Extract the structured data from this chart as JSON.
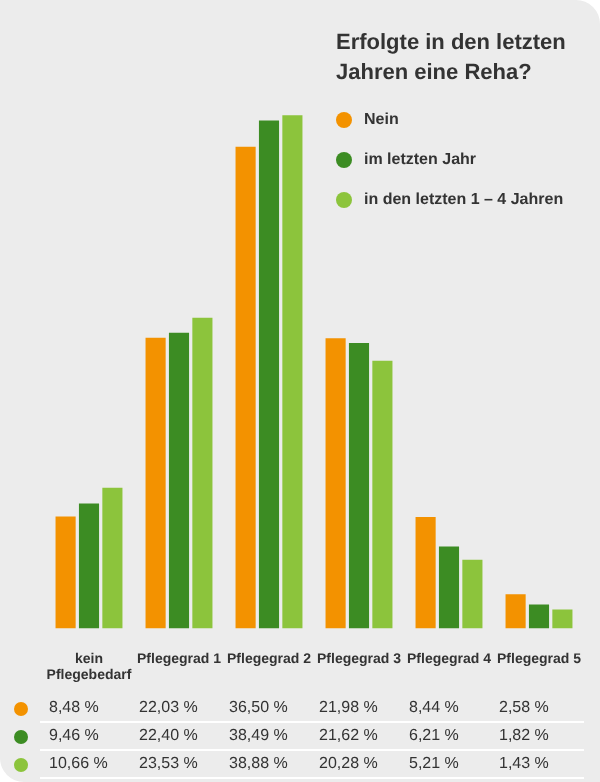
{
  "chart_data": {
    "type": "bar",
    "legend_title": "Erfolgte in den letzten Jahren eine Reha?",
    "legend": "top right",
    "categories": [
      "kein Pflegebedarf",
      "Pflegegrad 1",
      "Pflegegrad 2",
      "Pflegegrad 3",
      "Pflegegrad 4",
      "Pflegegrad 5"
    ],
    "series": [
      {
        "name": "Nein",
        "color": "#f39200",
        "values": [
          8.48,
          22.03,
          36.5,
          21.98,
          8.44,
          2.58
        ],
        "value_labels": [
          "8,48 %",
          "22,03 %",
          "36,50 %",
          "21,98 %",
          "8,44 %",
          "2,58 %"
        ]
      },
      {
        "name": "im letzten Jahr",
        "color": "#3c8c23",
        "values": [
          9.46,
          22.4,
          38.49,
          21.62,
          6.21,
          1.82
        ],
        "value_labels": [
          "9,46 %",
          "22,40 %",
          "38,49 %",
          "21,62 %",
          "6,21 %",
          "1,82 %"
        ]
      },
      {
        "name": "in den letzten 1 – 4 Jahren",
        "color": "#8cc43c",
        "values": [
          10.66,
          23.53,
          38.88,
          20.28,
          5.21,
          1.43
        ],
        "value_labels": [
          "10,66 %",
          "23,53 %",
          "38,88 %",
          "20,28 %",
          "5,21 %",
          "1,43 %"
        ]
      }
    ]
  }
}
